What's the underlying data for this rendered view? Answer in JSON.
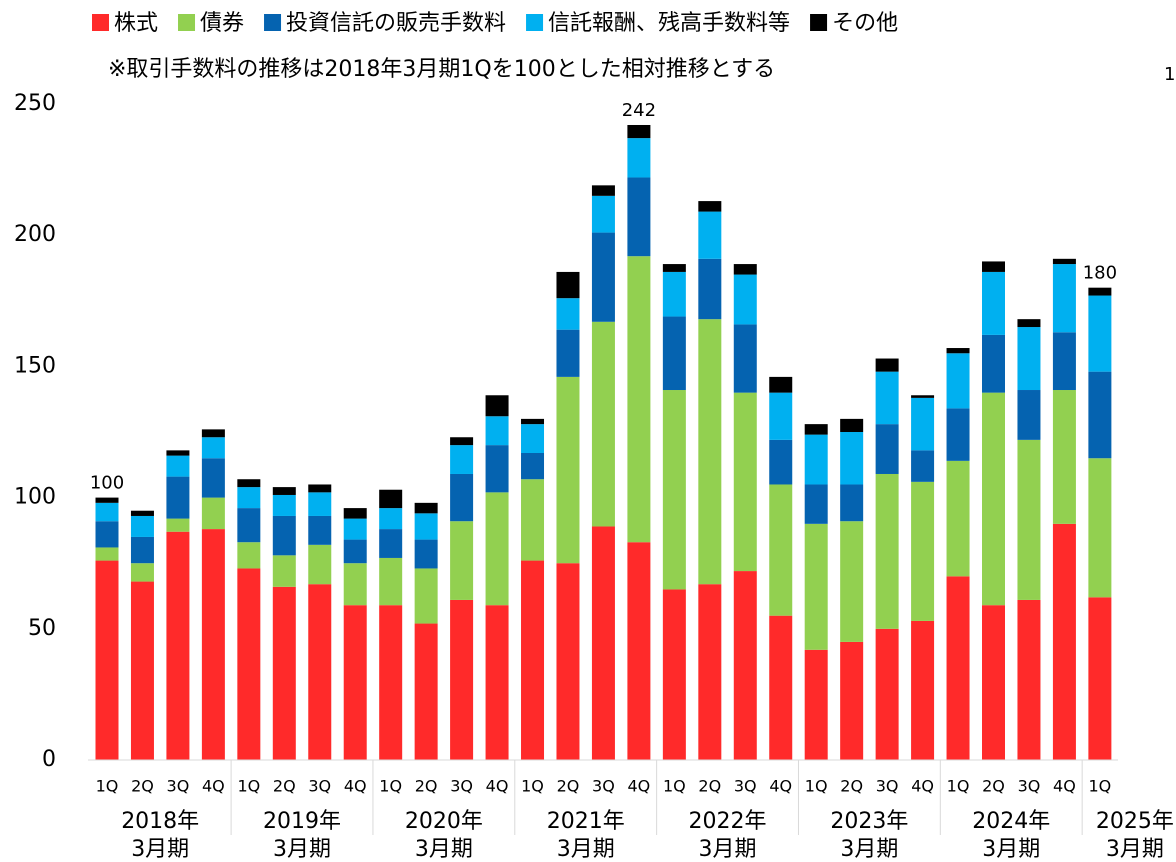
{
  "chart_data": {
    "type": "stacked_bar",
    "subtitle": "※取引手数料の推移は2018年3月期1Qを100とした相対推移とする",
    "corner_note": "1",
    "categories": [
      "1Q",
      "2Q",
      "3Q",
      "4Q",
      "1Q",
      "2Q",
      "3Q",
      "4Q",
      "1Q",
      "2Q",
      "3Q",
      "4Q",
      "1Q",
      "2Q",
      "3Q",
      "4Q",
      "1Q",
      "2Q",
      "3Q",
      "4Q",
      "1Q",
      "2Q",
      "3Q",
      "4Q",
      "1Q",
      "2Q",
      "3Q",
      "4Q",
      "1Q"
    ],
    "groups": [
      {
        "label": "2018年",
        "sublabel": "3月期",
        "size": 4
      },
      {
        "label": "2019年",
        "sublabel": "3月期",
        "size": 4
      },
      {
        "label": "2020年",
        "sublabel": "3月期",
        "size": 4
      },
      {
        "label": "2021年",
        "sublabel": "3月期",
        "size": 4
      },
      {
        "label": "2022年",
        "sublabel": "3月期",
        "size": 4
      },
      {
        "label": "2023年",
        "sublabel": "3月期",
        "size": 4
      },
      {
        "label": "2024年",
        "sublabel": "3月期",
        "size": 4
      },
      {
        "label": "2025年",
        "sublabel": "3月期",
        "size": 1
      }
    ],
    "series": [
      {
        "name": "株式",
        "color": "#ff2a2a",
        "values": [
          76,
          68,
          87,
          88,
          73,
          66,
          67,
          59,
          59,
          52,
          61,
          59,
          76,
          75,
          89,
          83,
          65,
          67,
          72,
          55,
          42,
          45,
          50,
          53,
          70,
          59,
          61,
          90,
          62
        ]
      },
      {
        "name": "債券",
        "color": "#92d050",
        "values": [
          5,
          7,
          5,
          12,
          10,
          12,
          15,
          16,
          18,
          21,
          30,
          43,
          31,
          71,
          78,
          109,
          76,
          101,
          68,
          50,
          48,
          46,
          59,
          53,
          44,
          81,
          61,
          51,
          53
        ]
      },
      {
        "name": "投資信託の販売手数料",
        "color": "#0563b0",
        "values": [
          10,
          10,
          16,
          15,
          13,
          15,
          11,
          9,
          11,
          11,
          18,
          18,
          10,
          18,
          34,
          30,
          28,
          23,
          26,
          17,
          15,
          14,
          19,
          12,
          20,
          22,
          19,
          22,
          33
        ]
      },
      {
        "name": "信託報酬、残高手数料等",
        "color": "#00b0f0",
        "values": [
          7,
          8,
          8,
          8,
          8,
          8,
          9,
          8,
          8,
          10,
          11,
          11,
          11,
          12,
          14,
          15,
          17,
          18,
          19,
          18,
          19,
          20,
          20,
          20,
          21,
          24,
          24,
          26,
          29
        ]
      },
      {
        "name": "その他",
        "color": "#000000",
        "values": [
          2,
          2,
          2,
          3,
          3,
          3,
          3,
          4,
          7,
          4,
          3,
          8,
          2,
          10,
          4,
          5,
          3,
          4,
          4,
          6,
          4,
          5,
          5,
          1,
          2,
          4,
          3,
          2,
          3
        ]
      }
    ],
    "total_labels": [
      "100",
      null,
      null,
      null,
      null,
      null,
      null,
      null,
      null,
      null,
      null,
      null,
      null,
      null,
      null,
      "242",
      null,
      null,
      null,
      null,
      null,
      null,
      null,
      null,
      null,
      null,
      null,
      null,
      "180"
    ],
    "ylim": [
      0,
      250
    ],
    "yticks": [
      0,
      50,
      100,
      150,
      200,
      250
    ],
    "grid": false
  }
}
